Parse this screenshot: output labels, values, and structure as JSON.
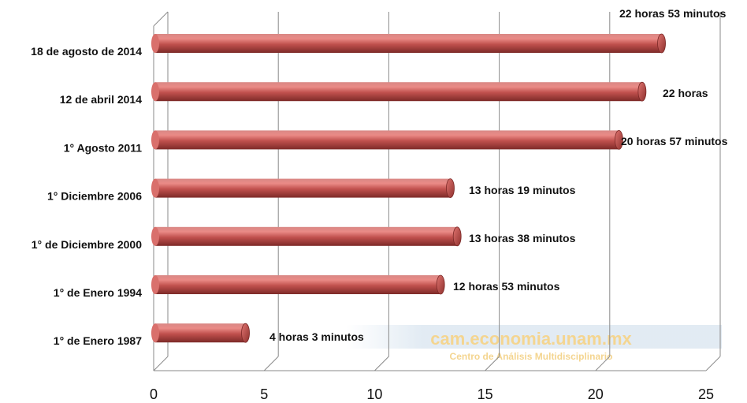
{
  "chart_data": {
    "type": "bar",
    "orientation": "horizontal",
    "categories": [
      "18 de agosto de 2014",
      "12 de abril 2014",
      "1° Agosto 2011",
      "1° Diciembre 2006",
      "1° de Diciembre 2000",
      "1° de Enero 1994",
      "1° de Enero 1987"
    ],
    "values": [
      22.88,
      22.0,
      20.95,
      13.32,
      13.63,
      12.88,
      4.05
    ],
    "data_labels": [
      "22 horas 53 minutos",
      "22 horas",
      "20 horas 57 minutos",
      "13 horas 19 minutos",
      "13 horas 38 minutos",
      "12 horas 53 minutos",
      "4 horas 3 minutos"
    ],
    "x_ticks": [
      0,
      5,
      10,
      15,
      20,
      25
    ],
    "xlim": [
      0,
      25
    ],
    "grid": true,
    "bar_color": "#c0504d",
    "title": "",
    "xlabel": "",
    "ylabel": ""
  },
  "watermark": {
    "main": "cam.economia.unam.mx",
    "sub": "Centro de Análisis Multidisciplinario"
  }
}
